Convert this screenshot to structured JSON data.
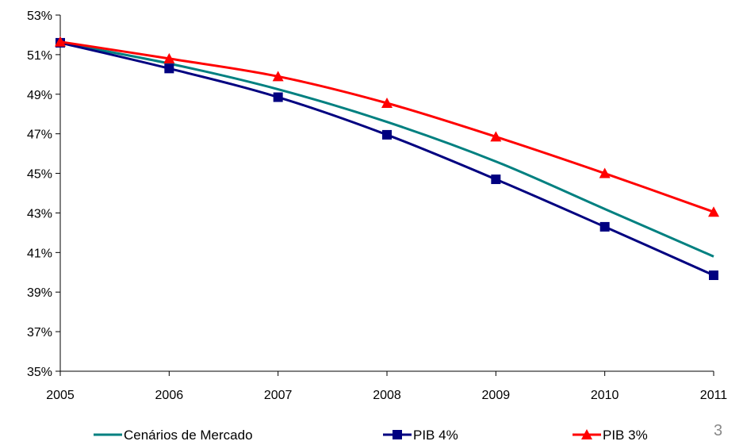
{
  "page_number": "3",
  "chart_data": {
    "type": "line",
    "title": "",
    "xlabel": "",
    "ylabel": "",
    "x": [
      "2005",
      "2006",
      "2007",
      "2008",
      "2009",
      "2010",
      "2011"
    ],
    "ylim": [
      35,
      53
    ],
    "yticks": [
      35,
      37,
      39,
      41,
      43,
      45,
      47,
      49,
      51,
      53
    ],
    "ytick_labels": [
      "35%",
      "37%",
      "39%",
      "41%",
      "43%",
      "45%",
      "47%",
      "49%",
      "51%",
      "53%"
    ],
    "grid": false,
    "legend_position": "bottom",
    "series": [
      {
        "name": "Cenários de Mercado",
        "color": "#008080",
        "marker": "none",
        "smooth": true,
        "values": [
          51.6,
          50.55,
          49.25,
          47.6,
          45.6,
          43.2,
          40.8
        ]
      },
      {
        "name": "PIB 4%",
        "color": "#000080",
        "marker": "square",
        "smooth": true,
        "values": [
          51.6,
          50.3,
          48.85,
          46.95,
          44.7,
          42.3,
          39.85
        ]
      },
      {
        "name": "PIB 3%",
        "color": "#ff0000",
        "marker": "triangle",
        "smooth": true,
        "values": [
          51.65,
          50.8,
          49.9,
          48.55,
          46.85,
          45.0,
          43.05
        ]
      }
    ]
  }
}
